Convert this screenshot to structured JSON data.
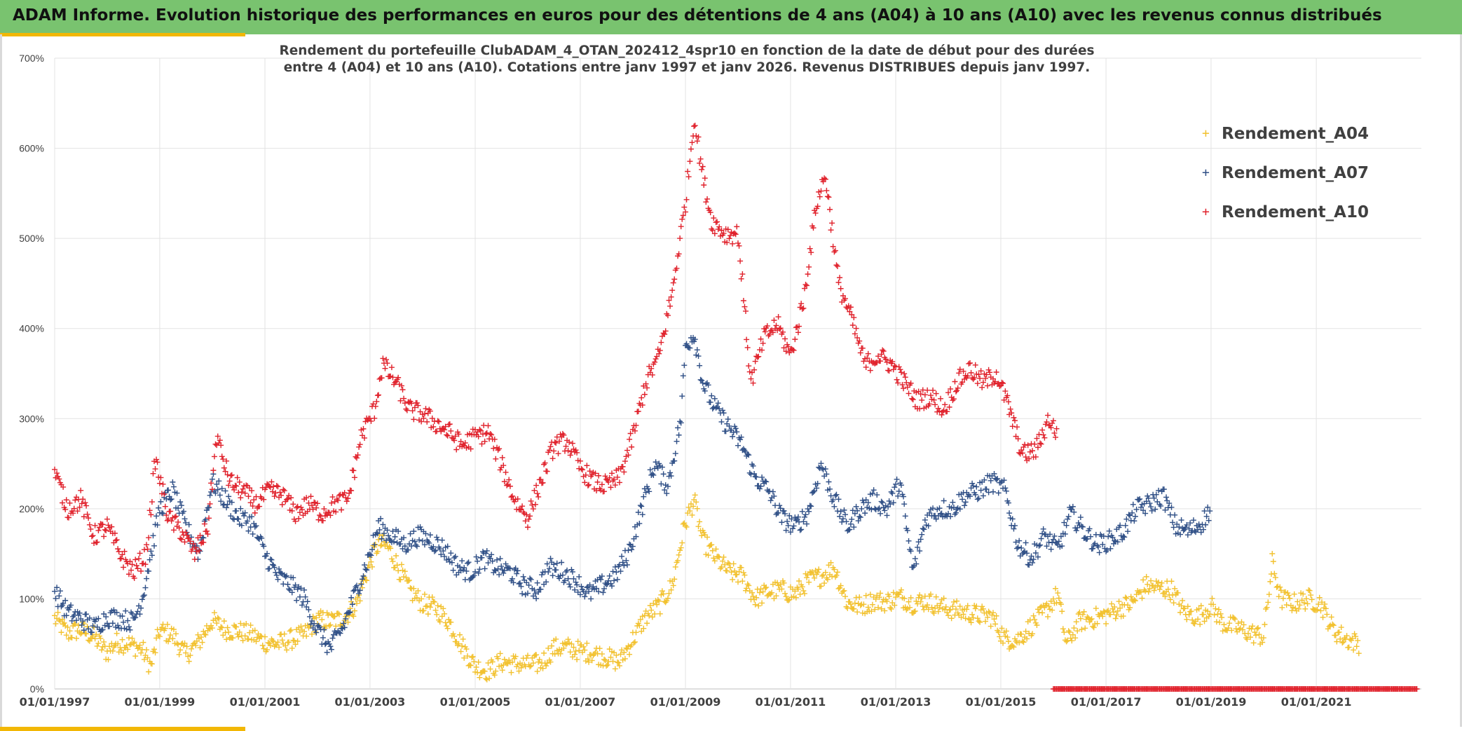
{
  "header": {
    "title": "ADAM Informe. Evolution historique des performances en euros pour des détentions de 4 ans (A04) à 10 ans (A10) avec les revenus connus distribués"
  },
  "colors": {
    "banner": "#79c36f",
    "accent": "#f2b705",
    "A04": "#f2c12e",
    "A07": "#2f4f86",
    "A10": "#e0212b"
  },
  "chart_data": {
    "type": "scatter",
    "title_line1": "Rendement du portefeuille ClubADAM_4_OTAN_202412_4spr10  en fonction de la date de début pour des durées",
    "title_line2": "entre 4 (A04) et 10 ans (A10). Cotations entre janv 1997 et janv 2026. Revenus DISTRIBUES depuis janv 1997.",
    "x_range": [
      "1997-01-01",
      "2023-01-01"
    ],
    "x_tick_labels": [
      "01/01/1997",
      "01/01/1999",
      "01/01/2001",
      "01/01/2003",
      "01/01/2005",
      "01/01/2007",
      "01/01/2009",
      "01/01/2011",
      "01/01/2013",
      "01/01/2015",
      "01/01/2017",
      "01/01/2019",
      "01/01/2021"
    ],
    "ylim": [
      0,
      7.0
    ],
    "y_tick_labels": [
      "0%",
      "100%",
      "200%",
      "300%",
      "400%",
      "500%",
      "600%",
      "700%"
    ],
    "grid": true,
    "legend_position": "top-right",
    "marker": "+",
    "series": [
      {
        "name": "Rendement_A04",
        "color": "#f2c12e",
        "points": [
          [
            "1997-01",
            0.78
          ],
          [
            "1997-04",
            0.62
          ],
          [
            "1997-07",
            0.66
          ],
          [
            "1997-10",
            0.58
          ],
          [
            "1998-01",
            0.4
          ],
          [
            "1998-03",
            0.52
          ],
          [
            "1998-06",
            0.5
          ],
          [
            "1998-09",
            0.44
          ],
          [
            "1998-11",
            0.25
          ],
          [
            "1999-01",
            0.65
          ],
          [
            "1999-04",
            0.6
          ],
          [
            "1999-07",
            0.38
          ],
          [
            "1999-10",
            0.52
          ],
          [
            "2000-01",
            0.76
          ],
          [
            "2000-04",
            0.66
          ],
          [
            "2000-07",
            0.64
          ],
          [
            "2000-10",
            0.6
          ],
          [
            "2001-01",
            0.52
          ],
          [
            "2001-04",
            0.5
          ],
          [
            "2001-07",
            0.55
          ],
          [
            "2001-10",
            0.6
          ],
          [
            "2002-01",
            0.77
          ],
          [
            "2002-04",
            0.75
          ],
          [
            "2002-07",
            0.78
          ],
          [
            "2002-10",
            0.95
          ],
          [
            "2003-01",
            1.4
          ],
          [
            "2003-03",
            1.62
          ],
          [
            "2003-05",
            1.58
          ],
          [
            "2003-07",
            1.4
          ],
          [
            "2003-10",
            1.1
          ],
          [
            "2004-01",
            0.95
          ],
          [
            "2004-04",
            0.9
          ],
          [
            "2004-07",
            0.75
          ],
          [
            "2004-10",
            0.48
          ],
          [
            "2005-01",
            0.25
          ],
          [
            "2005-04",
            0.2
          ],
          [
            "2005-07",
            0.3
          ],
          [
            "2005-10",
            0.28
          ],
          [
            "2006-01",
            0.27
          ],
          [
            "2006-04",
            0.28
          ],
          [
            "2006-07",
            0.45
          ],
          [
            "2006-10",
            0.46
          ],
          [
            "2007-01",
            0.42
          ],
          [
            "2007-04",
            0.4
          ],
          [
            "2007-07",
            0.35
          ],
          [
            "2007-10",
            0.3
          ],
          [
            "2008-01",
            0.55
          ],
          [
            "2008-04",
            0.8
          ],
          [
            "2008-07",
            0.92
          ],
          [
            "2008-10",
            1.15
          ],
          [
            "2009-01",
            1.85
          ],
          [
            "2009-03",
            2.1
          ],
          [
            "2009-05",
            1.65
          ],
          [
            "2009-08",
            1.45
          ],
          [
            "2009-11",
            1.3
          ],
          [
            "2010-02",
            1.25
          ],
          [
            "2010-05",
            1.0
          ],
          [
            "2010-08",
            1.08
          ],
          [
            "2010-11",
            1.1
          ],
          [
            "2011-02",
            1.05
          ],
          [
            "2011-05",
            1.2
          ],
          [
            "2011-08",
            1.25
          ],
          [
            "2011-11",
            1.35
          ],
          [
            "2012-02",
            0.95
          ],
          [
            "2012-05",
            0.92
          ],
          [
            "2012-08",
            0.98
          ],
          [
            "2012-11",
            0.97
          ],
          [
            "2013-02",
            1.02
          ],
          [
            "2013-05",
            0.95
          ],
          [
            "2013-08",
            0.98
          ],
          [
            "2013-11",
            0.92
          ],
          [
            "2014-02",
            0.88
          ],
          [
            "2014-05",
            0.85
          ],
          [
            "2014-08",
            0.82
          ],
          [
            "2014-11",
            0.8
          ],
          [
            "2015-02",
            0.55
          ],
          [
            "2015-05",
            0.55
          ],
          [
            "2015-08",
            0.7
          ],
          [
            "2015-11",
            0.85
          ],
          [
            "2016-02",
            1.05
          ],
          [
            "2016-04",
            0.5
          ],
          [
            "2016-07",
            0.75
          ],
          [
            "2016-10",
            0.78
          ],
          [
            "2017-01",
            0.82
          ],
          [
            "2017-04",
            0.9
          ],
          [
            "2017-07",
            0.95
          ],
          [
            "2017-10",
            1.15
          ],
          [
            "2018-01",
            1.12
          ],
          [
            "2018-04",
            1.1
          ],
          [
            "2018-07",
            0.85
          ],
          [
            "2018-10",
            0.8
          ],
          [
            "2019-01",
            0.92
          ],
          [
            "2019-04",
            0.72
          ],
          [
            "2019-07",
            0.68
          ],
          [
            "2019-10",
            0.62
          ],
          [
            "2020-01",
            0.58
          ],
          [
            "2020-03",
            1.4
          ],
          [
            "2020-05",
            1.0
          ],
          [
            "2020-08",
            0.95
          ],
          [
            "2020-11",
            1.0
          ],
          [
            "2021-02",
            0.95
          ],
          [
            "2021-05",
            0.65
          ],
          [
            "2021-08",
            0.55
          ],
          [
            "2021-11",
            0.5
          ]
        ]
      },
      {
        "name": "Rendement_A07",
        "color": "#2f4f86",
        "points": [
          [
            "1997-01",
            1.08
          ],
          [
            "1997-04",
            0.85
          ],
          [
            "1997-07",
            0.78
          ],
          [
            "1997-10",
            0.68
          ],
          [
            "1998-01",
            0.8
          ],
          [
            "1998-04",
            0.78
          ],
          [
            "1998-07",
            0.75
          ],
          [
            "1998-09",
            1.0
          ],
          [
            "1998-11",
            1.5
          ],
          [
            "1999-01",
            2.0
          ],
          [
            "1999-04",
            2.2
          ],
          [
            "1999-07",
            1.8
          ],
          [
            "1999-10",
            1.5
          ],
          [
            "2000-01",
            2.3
          ],
          [
            "2000-04",
            2.1
          ],
          [
            "2000-07",
            1.9
          ],
          [
            "2000-10",
            1.85
          ],
          [
            "2001-01",
            1.5
          ],
          [
            "2001-04",
            1.25
          ],
          [
            "2001-07",
            1.15
          ],
          [
            "2001-10",
            1.0
          ],
          [
            "2002-01",
            0.65
          ],
          [
            "2002-04",
            0.45
          ],
          [
            "2002-07",
            0.7
          ],
          [
            "2002-10",
            1.1
          ],
          [
            "2003-01",
            1.5
          ],
          [
            "2003-03",
            1.8
          ],
          [
            "2003-06",
            1.7
          ],
          [
            "2003-09",
            1.6
          ],
          [
            "2003-12",
            1.7
          ],
          [
            "2004-03",
            1.65
          ],
          [
            "2004-06",
            1.55
          ],
          [
            "2004-09",
            1.35
          ],
          [
            "2004-12",
            1.3
          ],
          [
            "2005-03",
            1.45
          ],
          [
            "2005-06",
            1.35
          ],
          [
            "2005-09",
            1.3
          ],
          [
            "2005-12",
            1.15
          ],
          [
            "2006-03",
            1.1
          ],
          [
            "2006-06",
            1.35
          ],
          [
            "2006-09",
            1.3
          ],
          [
            "2006-12",
            1.2
          ],
          [
            "2007-03",
            1.05
          ],
          [
            "2007-06",
            1.15
          ],
          [
            "2007-09",
            1.25
          ],
          [
            "2007-12",
            1.5
          ],
          [
            "2008-03",
            2.0
          ],
          [
            "2008-06",
            2.5
          ],
          [
            "2008-09",
            2.25
          ],
          [
            "2008-12",
            3.0
          ],
          [
            "2009-01",
            3.8
          ],
          [
            "2009-03",
            3.95
          ],
          [
            "2009-05",
            3.4
          ],
          [
            "2009-08",
            3.1
          ],
          [
            "2009-11",
            2.9
          ],
          [
            "2010-02",
            2.7
          ],
          [
            "2010-05",
            2.35
          ],
          [
            "2010-08",
            2.2
          ],
          [
            "2010-11",
            1.9
          ],
          [
            "2011-02",
            1.8
          ],
          [
            "2011-05",
            1.95
          ],
          [
            "2011-08",
            2.5
          ],
          [
            "2011-11",
            2.1
          ],
          [
            "2012-02",
            1.8
          ],
          [
            "2012-05",
            2.0
          ],
          [
            "2012-08",
            2.1
          ],
          [
            "2012-11",
            2.0
          ],
          [
            "2013-02",
            2.3
          ],
          [
            "2013-05",
            1.3
          ],
          [
            "2013-08",
            1.9
          ],
          [
            "2013-11",
            2.0
          ],
          [
            "2014-02",
            2.0
          ],
          [
            "2014-05",
            2.15
          ],
          [
            "2014-08",
            2.2
          ],
          [
            "2014-11",
            2.3
          ],
          [
            "2015-02",
            2.2
          ],
          [
            "2015-05",
            1.6
          ],
          [
            "2015-08",
            1.45
          ],
          [
            "2015-11",
            1.7
          ],
          [
            "2016-02",
            1.55
          ],
          [
            "2016-05",
            1.95
          ],
          [
            "2016-08",
            1.75
          ],
          [
            "2016-11",
            1.6
          ],
          [
            "2017-02",
            1.65
          ],
          [
            "2017-05",
            1.75
          ],
          [
            "2017-08",
            2.0
          ],
          [
            "2017-11",
            2.05
          ],
          [
            "2018-02",
            2.15
          ],
          [
            "2018-05",
            1.8
          ],
          [
            "2018-08",
            1.75
          ],
          [
            "2018-11",
            1.85
          ],
          [
            "2019-01",
            2.0
          ]
        ]
      },
      {
        "name": "Rendement_A10",
        "color": "#e0212b",
        "points": [
          [
            "1997-01",
            2.4
          ],
          [
            "1997-04",
            2.0
          ],
          [
            "1997-07",
            2.1
          ],
          [
            "1997-10",
            1.7
          ],
          [
            "1998-01",
            1.8
          ],
          [
            "1998-04",
            1.5
          ],
          [
            "1998-07",
            1.3
          ],
          [
            "1998-10",
            1.5
          ],
          [
            "1998-12",
            2.55
          ],
          [
            "1999-03",
            1.9
          ],
          [
            "1999-06",
            1.75
          ],
          [
            "1999-09",
            1.5
          ],
          [
            "1999-12",
            1.8
          ],
          [
            "2000-02",
            2.8
          ],
          [
            "2000-05",
            2.3
          ],
          [
            "2000-08",
            2.2
          ],
          [
            "2000-11",
            2.05
          ],
          [
            "2001-02",
            2.2
          ],
          [
            "2001-05",
            2.15
          ],
          [
            "2001-08",
            1.95
          ],
          [
            "2001-11",
            2.05
          ],
          [
            "2002-02",
            1.95
          ],
          [
            "2002-05",
            2.05
          ],
          [
            "2002-08",
            2.1
          ],
          [
            "2002-11",
            2.8
          ],
          [
            "2003-02",
            3.1
          ],
          [
            "2003-04",
            3.6
          ],
          [
            "2003-07",
            3.4
          ],
          [
            "2003-10",
            3.1
          ],
          [
            "2004-01",
            3.05
          ],
          [
            "2004-04",
            2.95
          ],
          [
            "2004-07",
            2.85
          ],
          [
            "2004-10",
            2.7
          ],
          [
            "2005-01",
            2.8
          ],
          [
            "2005-04",
            2.85
          ],
          [
            "2005-07",
            2.5
          ],
          [
            "2005-10",
            2.1
          ],
          [
            "2006-01",
            1.9
          ],
          [
            "2006-04",
            2.3
          ],
          [
            "2006-07",
            2.7
          ],
          [
            "2006-10",
            2.75
          ],
          [
            "2007-01",
            2.45
          ],
          [
            "2007-04",
            2.3
          ],
          [
            "2007-07",
            2.25
          ],
          [
            "2007-10",
            2.35
          ],
          [
            "2008-01",
            2.8
          ],
          [
            "2008-04",
            3.4
          ],
          [
            "2008-07",
            3.7
          ],
          [
            "2008-10",
            4.4
          ],
          [
            "2009-01",
            5.4
          ],
          [
            "2009-03",
            6.35
          ],
          [
            "2009-05",
            5.7
          ],
          [
            "2009-07",
            5.2
          ],
          [
            "2009-10",
            5.05
          ],
          [
            "2010-01",
            5.05
          ],
          [
            "2010-04",
            3.4
          ],
          [
            "2010-07",
            3.9
          ],
          [
            "2010-10",
            4.05
          ],
          [
            "2011-01",
            3.7
          ],
          [
            "2011-04",
            4.3
          ],
          [
            "2011-07",
            5.4
          ],
          [
            "2011-09",
            5.7
          ],
          [
            "2011-12",
            4.5
          ],
          [
            "2012-03",
            4.1
          ],
          [
            "2012-06",
            3.6
          ],
          [
            "2012-09",
            3.7
          ],
          [
            "2012-12",
            3.6
          ],
          [
            "2013-03",
            3.4
          ],
          [
            "2013-06",
            3.2
          ],
          [
            "2013-09",
            3.25
          ],
          [
            "2013-12",
            3.1
          ],
          [
            "2014-03",
            3.4
          ],
          [
            "2014-06",
            3.55
          ],
          [
            "2014-09",
            3.4
          ],
          [
            "2014-12",
            3.5
          ],
          [
            "2015-03",
            3.1
          ],
          [
            "2015-06",
            2.6
          ],
          [
            "2015-09",
            2.65
          ],
          [
            "2015-12",
            3.0
          ],
          [
            "2016-02",
            2.8
          ]
        ]
      }
    ],
    "baseline_marks": {
      "series": "Rendement_A10",
      "value": 0,
      "from": "2016-01",
      "to": "2022-12"
    }
  }
}
